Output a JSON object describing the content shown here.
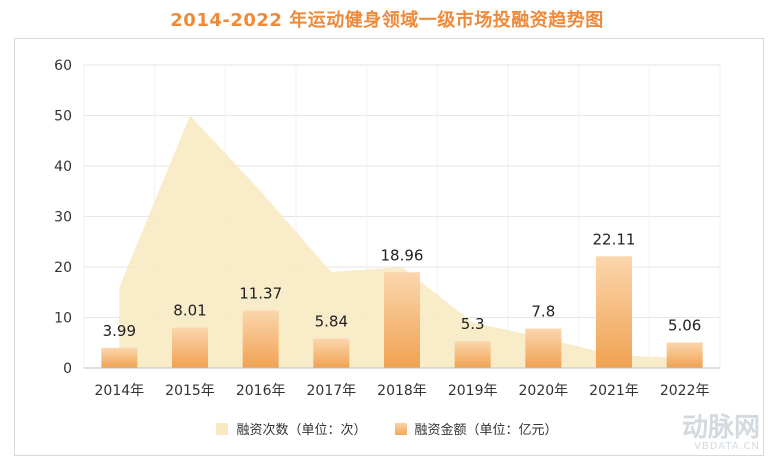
{
  "title": "2014-2022 年运动健身领域一级市场投融资趋势图",
  "chart_data": {
    "type": "bar",
    "categories": [
      "2014年",
      "2015年",
      "2016年",
      "2017年",
      "2018年",
      "2019年",
      "2020年",
      "2021年",
      "2022年"
    ],
    "series": [
      {
        "name": "融资次数（单位：次）",
        "type": "area",
        "values": [
          16,
          50,
          35,
          19,
          20,
          9,
          6,
          2.5,
          2
        ],
        "color": "#f7e9c0"
      },
      {
        "name": "融资金额（单位：亿元）",
        "type": "bar",
        "values": [
          3.99,
          8.01,
          11.37,
          5.84,
          18.96,
          5.3,
          7.8,
          22.11,
          5.06
        ],
        "labels": [
          "3.99",
          "8.01",
          "11.37",
          "5.84",
          "18.96",
          "5.3",
          "7.8",
          "22.11",
          "5.06"
        ],
        "color": "#f2a65a"
      }
    ],
    "yticks": [
      "0",
      "10",
      "20",
      "30",
      "40",
      "50",
      "60"
    ],
    "ylim": [
      0,
      60
    ],
    "grid": true,
    "legend": "bottom"
  },
  "legend": {
    "area_label": "融资次数（单位：次）",
    "bar_label": "融资金额（单位：亿元）"
  },
  "watermark": {
    "logo_text": "动脉网",
    "site": "VBDATA.CN"
  }
}
